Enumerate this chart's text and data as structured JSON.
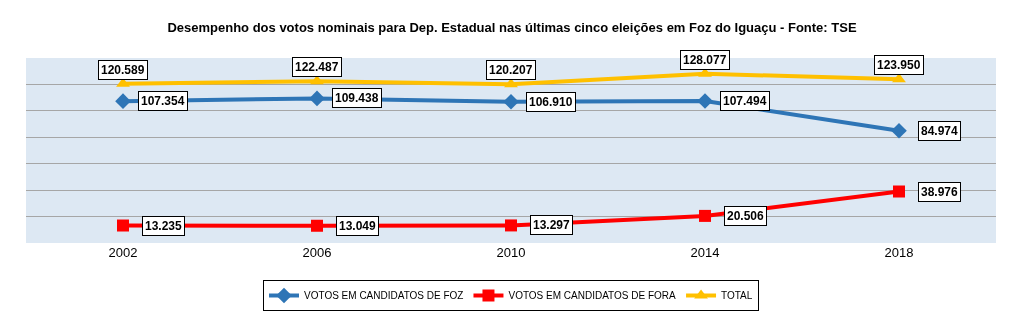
{
  "chart_data": {
    "type": "line",
    "title": "Desempenho dos votos nominais para Dep. Estadual nas últimas cinco eleições em Foz do Iguaçu - Fonte: TSE",
    "categories": [
      "2002",
      "2006",
      "2010",
      "2014",
      "2018"
    ],
    "series": [
      {
        "name": "VOTOS EM CANDIDATOS DE FOZ",
        "color": "#2e75b6",
        "marker": "diamond",
        "values": [
          107354,
          109438,
          106910,
          107494,
          84974
        ],
        "value_labels": [
          "107.354",
          "109.438",
          "106.910",
          "107.494",
          "84.974"
        ]
      },
      {
        "name": "VOTOS EM CANDIDATOS DE FORA",
        "color": "#ff0000",
        "marker": "square",
        "values": [
          13235,
          13049,
          13297,
          20506,
          38976
        ],
        "value_labels": [
          "13.235",
          "13.049",
          "13.297",
          "20.506",
          "38.976"
        ]
      },
      {
        "name": "TOTAL",
        "color": "#ffc000",
        "marker": "triangle",
        "values": [
          120589,
          122487,
          120207,
          128077,
          123950
        ],
        "value_labels": [
          "120.589",
          "122.487",
          "120.207",
          "128.077",
          "123.950"
        ]
      }
    ],
    "ylim": [
      0,
      140000
    ],
    "yticks": [
      {
        "value": 0,
        "label": null
      },
      {
        "value": 20000,
        "label": null
      },
      {
        "value": 40000,
        "label": null
      },
      {
        "value": 60000,
        "label": null
      },
      {
        "value": 80000,
        "label": null
      },
      {
        "value": 100000,
        "label": null
      },
      {
        "value": 120000,
        "label": null
      },
      {
        "value": 140000,
        "label": null
      }
    ],
    "tick_labels": "x",
    "grid": "y",
    "legend": "bottom",
    "line_style": "solid"
  }
}
